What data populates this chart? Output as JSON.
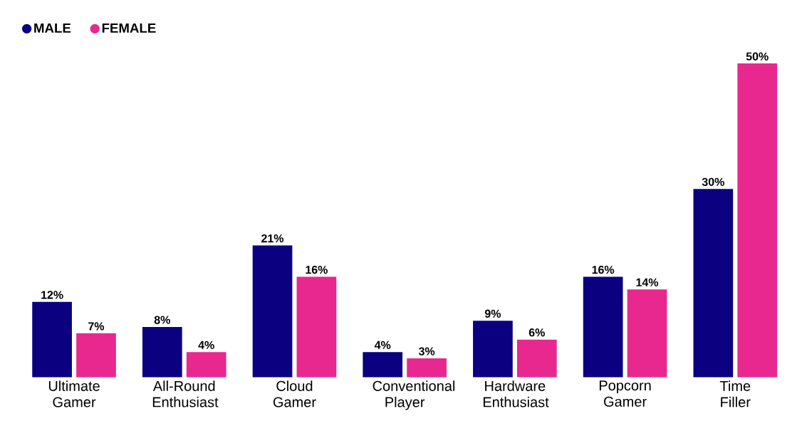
{
  "chart_data": {
    "type": "bar",
    "categories": [
      "Ultimate Gamer",
      "All-Round Enthusiast",
      "Cloud Gamer",
      "Conventional Player",
      "Hardware Enthusiast",
      "Popcorn Gamer",
      "Time Filler"
    ],
    "series": [
      {
        "name": "MALE",
        "color": "#0a0080",
        "values": [
          12,
          8,
          21,
          4,
          9,
          16,
          30
        ],
        "value_labels": [
          "12%",
          "8%",
          "21%",
          "4%",
          "9%",
          "16%",
          "30%"
        ]
      },
      {
        "name": "FEMALE",
        "color": "#e8288f",
        "values": [
          7,
          4,
          16,
          3,
          6,
          14,
          50
        ],
        "value_labels": [
          "7%",
          "4%",
          "16%",
          "3%",
          "6%",
          "14%",
          "50%"
        ]
      }
    ],
    "legend": "top left"
  }
}
